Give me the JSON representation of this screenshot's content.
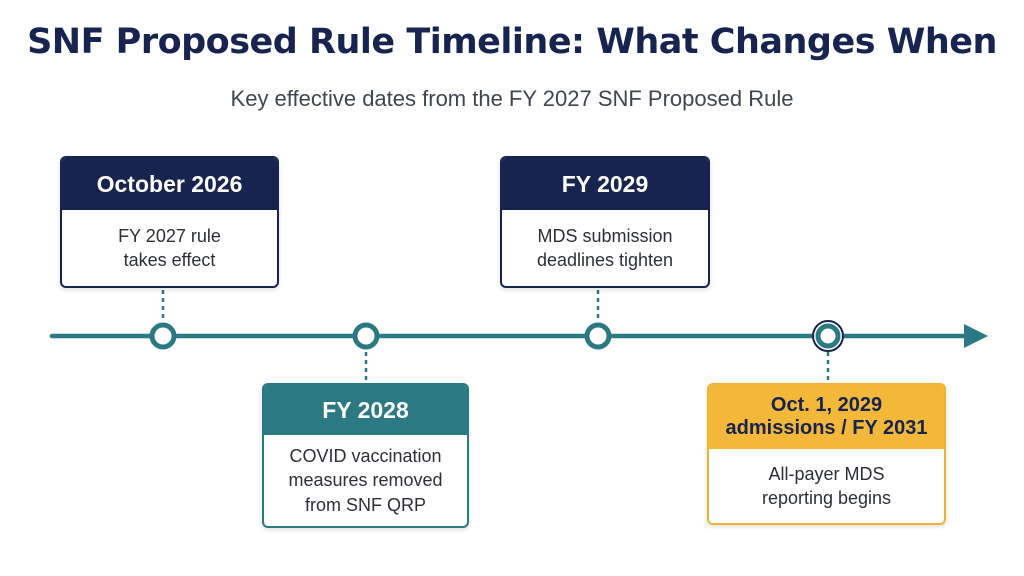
{
  "title": "SNF Proposed Rule Timeline: What Changes When",
  "subtitle": "Key effective dates from the FY 2027 SNF Proposed Rule",
  "colors": {
    "navy": "#16244f",
    "teal": "#2b7983",
    "gold": "#f3b73a",
    "line": "#2b7983"
  },
  "milestones": [
    {
      "heading": "October 2026",
      "body_line1": "FY 2027 rule",
      "body_line2": "takes effect",
      "body_line3": ""
    },
    {
      "heading": "FY 2028",
      "body_line1": "COVID vaccination",
      "body_line2": "measures removed",
      "body_line3": "from SNF QRP"
    },
    {
      "heading": "FY 2029",
      "body_line1": "MDS submission",
      "body_line2": "deadlines tighten",
      "body_line3": ""
    },
    {
      "heading_line1": "Oct. 1, 2029",
      "heading_line2": "admissions / FY 2031",
      "body_line1": "All-payer MDS",
      "body_line2": "reporting begins",
      "body_line3": ""
    }
  ]
}
